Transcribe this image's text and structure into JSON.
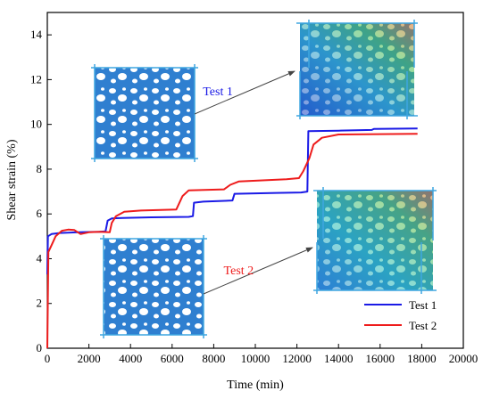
{
  "colors": {
    "test1": "#1a1ae6",
    "test2": "#ee1c1c",
    "sample_fill": "#2f7fd0",
    "sample_bg": "#ffffff",
    "annotation": "#444444"
  },
  "chart_data": {
    "type": "line",
    "xlabel": "Time (min)",
    "ylabel": "Shear strain (%)",
    "xlim": [
      0,
      20000
    ],
    "ylim": [
      0,
      15
    ],
    "xticks": [
      0,
      2000,
      4000,
      6000,
      8000,
      10000,
      12000,
      14000,
      16000,
      18000,
      20000
    ],
    "yticks": [
      0,
      2,
      4,
      6,
      8,
      10,
      12,
      14
    ],
    "grid": false,
    "legend_position": "bottom-right",
    "series": [
      {
        "name": "Test 1",
        "color_key": "test1",
        "points": [
          [
            0,
            3.3
          ],
          [
            30,
            5.0
          ],
          [
            200,
            5.1
          ],
          [
            600,
            5.15
          ],
          [
            1500,
            5.18
          ],
          [
            2500,
            5.2
          ],
          [
            2800,
            5.22
          ],
          [
            2900,
            5.7
          ],
          [
            3100,
            5.8
          ],
          [
            3600,
            5.82
          ],
          [
            5000,
            5.85
          ],
          [
            6800,
            5.87
          ],
          [
            7000,
            5.9
          ],
          [
            7050,
            6.5
          ],
          [
            7500,
            6.55
          ],
          [
            8900,
            6.6
          ],
          [
            9000,
            6.9
          ],
          [
            10000,
            6.92
          ],
          [
            11000,
            6.94
          ],
          [
            12200,
            6.96
          ],
          [
            12500,
            7.0
          ],
          [
            12550,
            9.7
          ],
          [
            14000,
            9.72
          ],
          [
            15600,
            9.75
          ],
          [
            15700,
            9.8
          ],
          [
            17800,
            9.82
          ]
        ]
      },
      {
        "name": "Test 2",
        "color_key": "test2",
        "points": [
          [
            0,
            0.0
          ],
          [
            50,
            4.3
          ],
          [
            200,
            4.6
          ],
          [
            400,
            5.0
          ],
          [
            700,
            5.25
          ],
          [
            1000,
            5.3
          ],
          [
            1300,
            5.28
          ],
          [
            1600,
            5.1
          ],
          [
            2000,
            5.18
          ],
          [
            2500,
            5.2
          ],
          [
            3000,
            5.18
          ],
          [
            3100,
            5.6
          ],
          [
            3300,
            5.9
          ],
          [
            3700,
            6.1
          ],
          [
            4500,
            6.15
          ],
          [
            6200,
            6.2
          ],
          [
            6500,
            6.8
          ],
          [
            6800,
            7.05
          ],
          [
            8500,
            7.1
          ],
          [
            8800,
            7.3
          ],
          [
            9200,
            7.45
          ],
          [
            11500,
            7.55
          ],
          [
            12100,
            7.6
          ],
          [
            12300,
            7.9
          ],
          [
            12600,
            8.5
          ],
          [
            12800,
            9.1
          ],
          [
            13200,
            9.4
          ],
          [
            14000,
            9.55
          ],
          [
            17800,
            9.58
          ]
        ]
      }
    ],
    "annotations": [
      {
        "text": "Test 1",
        "color_key": "test1",
        "x": 8200,
        "y": 11.3
      },
      {
        "text": "Test 2",
        "color_key": "test2",
        "x": 9200,
        "y": 3.3
      }
    ]
  }
}
